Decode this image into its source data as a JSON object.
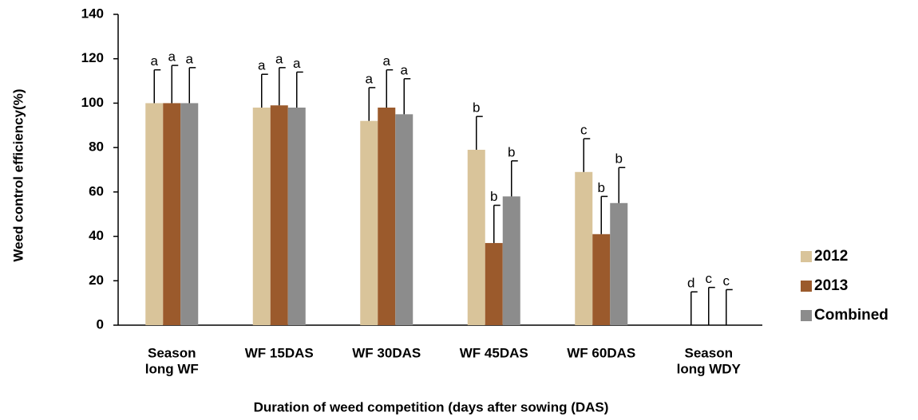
{
  "chart_data": {
    "type": "bar",
    "x_label": "Duration of weed competition (days after sowing (DAS)",
    "y_label": "Weed control efficiency(%)",
    "categories": [
      [
        "Season",
        "long WF"
      ],
      [
        "WF 15DAS"
      ],
      [
        "WF 30DAS"
      ],
      [
        "WF 45DAS"
      ],
      [
        "WF 60DAS"
      ],
      [
        "Season",
        "long WDY"
      ]
    ],
    "series": [
      {
        "name": "2012",
        "color": "#d9c49a",
        "values": [
          100,
          98,
          92,
          79,
          69,
          0
        ],
        "errors": [
          15,
          15,
          15,
          15,
          15,
          15
        ],
        "letters": [
          "a",
          "a",
          "a",
          "b",
          "c",
          "d"
        ]
      },
      {
        "name": "2013",
        "color": "#9b5a2c",
        "values": [
          100,
          99,
          98,
          37,
          41,
          0
        ],
        "errors": [
          17,
          17,
          17,
          17,
          17,
          17
        ],
        "letters": [
          "a",
          "a",
          "a",
          "b",
          "b",
          "c"
        ]
      },
      {
        "name": "Combined",
        "color": "#8c8c8c",
        "values": [
          100,
          98,
          95,
          58,
          55,
          0
        ],
        "errors": [
          16,
          16,
          16,
          16,
          16,
          16
        ],
        "letters": [
          "a",
          "a",
          "a",
          "b",
          "b",
          "c"
        ]
      }
    ],
    "ylim": [
      0,
      140
    ],
    "yticks": [
      0,
      20,
      40,
      60,
      80,
      100,
      120,
      140
    ],
    "grid": false,
    "legend": "right"
  }
}
